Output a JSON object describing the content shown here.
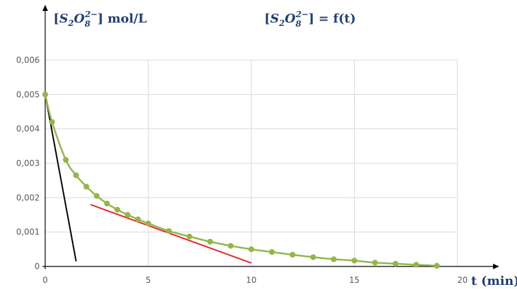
{
  "chart_data": {
    "type": "line",
    "title": "[S2O8^2-] = f(t)",
    "title_parts": {
      "bracket_l": "[",
      "species": "S",
      "sub2": "2",
      "o": "O",
      "sub8": "8",
      "charge": "2−",
      "bracket_r": "]",
      "eq": " = f(t)"
    },
    "ylabel_unit": " mol/L",
    "xlabel": "t (min)",
    "xlim": [
      0,
      20
    ],
    "ylim": [
      0,
      0.006
    ],
    "x_ticks": [
      0,
      5,
      10,
      15,
      20
    ],
    "x_tick_labels": [
      "0",
      "5",
      "10",
      "15",
      "20"
    ],
    "y_ticks": [
      0,
      0.001,
      0.002,
      0.003,
      0.004,
      0.005,
      0.006
    ],
    "y_tick_labels": [
      "0",
      "0,001",
      "0,002",
      "0,003",
      "0,004",
      "0,005",
      "0,006"
    ],
    "grid": true,
    "series": [
      {
        "color": "#92b64a",
        "marker": "circle",
        "x": [
          0,
          0.33,
          1,
          1.5,
          2,
          2.5,
          3,
          3.5,
          4,
          4.5,
          5,
          6,
          7,
          8,
          9,
          10,
          11,
          12,
          13,
          14,
          15,
          16,
          17,
          18,
          19
        ],
        "y": [
          0.005,
          0.0042,
          0.0031,
          0.00265,
          0.00232,
          0.00205,
          0.00183,
          0.00165,
          0.0015,
          0.00137,
          0.00125,
          0.00103,
          0.00087,
          0.00072,
          0.0006,
          0.0005,
          0.00042,
          0.00034,
          0.00027,
          0.00021,
          0.00017,
          0.00011,
          8e-05,
          5e-05,
          2e-05
        ]
      }
    ],
    "tangents": [
      {
        "color": "#000000",
        "x": [
          0,
          1.5
        ],
        "y": [
          0.005,
          0.00015
        ]
      },
      {
        "color": "#e8232c",
        "x": [
          2.2,
          10
        ],
        "y": [
          0.0018,
          0.0001
        ]
      }
    ],
    "colors": {
      "axis": "#000000",
      "grid": "#d9d9d9",
      "title": "#1f3f77",
      "tick": "#595959"
    }
  }
}
